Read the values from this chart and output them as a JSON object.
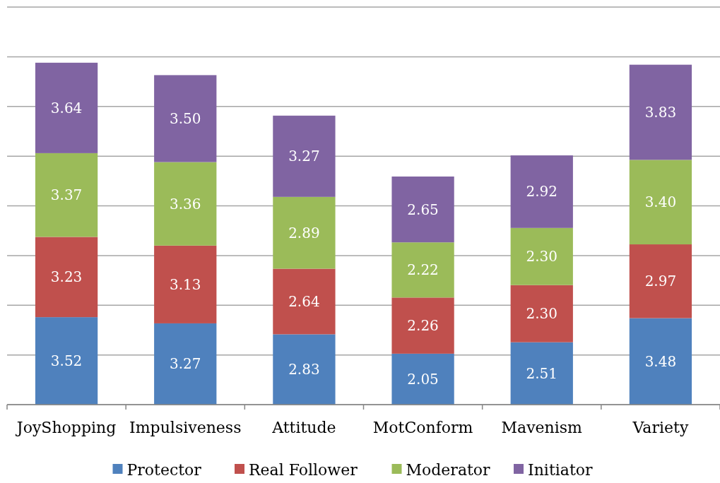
{
  "chart_data": {
    "type": "bar",
    "stacked": true,
    "categories": [
      "JoyShopping",
      "Impulsiveness",
      "Attitude",
      "MotConform",
      "Mavenism",
      "Variety"
    ],
    "series": [
      {
        "name": "Protector",
        "color": "#4f81bd",
        "values": [
          3.52,
          3.27,
          2.83,
          2.05,
          2.51,
          3.48
        ],
        "value_labels": [
          "3.52",
          "3.27",
          "2.83",
          "2.05",
          "2.51",
          "3.48"
        ]
      },
      {
        "name": "Real Follower",
        "color": "#c0504d",
        "values": [
          3.23,
          3.13,
          2.64,
          2.26,
          2.3,
          2.97
        ],
        "value_labels": [
          "3.23",
          "3.13",
          "2.64",
          "2.26",
          "2.30",
          "2.97"
        ]
      },
      {
        "name": "Moderator",
        "color": "#9bbb59",
        "values": [
          3.37,
          3.36,
          2.89,
          2.22,
          2.3,
          3.4
        ],
        "value_labels": [
          "3.37",
          "3.36",
          "2.89",
          "2.22",
          "2.30",
          "3.40"
        ]
      },
      {
        "name": "Initiator",
        "color": "#8064a2",
        "values": [
          3.64,
          3.5,
          3.27,
          2.65,
          2.92,
          3.83
        ],
        "value_labels": [
          "3.64",
          "3.50",
          "3.27",
          "2.65",
          "2.92",
          "3.83"
        ]
      }
    ],
    "ylim": [
      0,
      16
    ],
    "yticks": [
      {
        "value": 0,
        "label": null
      },
      {
        "value": 2,
        "label": null
      },
      {
        "value": 4,
        "label": null
      },
      {
        "value": 6,
        "label": null
      },
      {
        "value": 8,
        "label": null
      },
      {
        "value": 10,
        "label": null
      },
      {
        "value": 12,
        "label": null
      },
      {
        "value": 14,
        "label": null
      },
      {
        "value": 16,
        "label": null
      }
    ],
    "grid": "y",
    "legend": "bottom",
    "tick_labels": "x"
  }
}
